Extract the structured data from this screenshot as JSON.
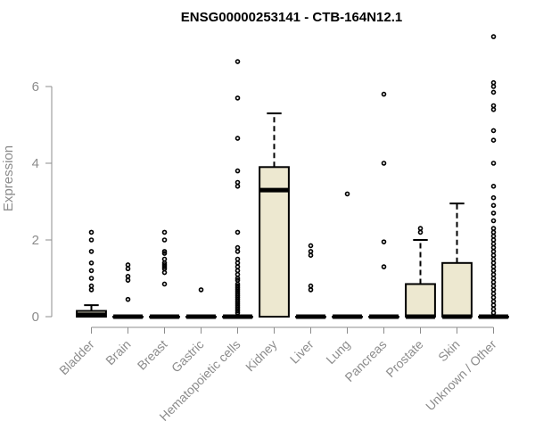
{
  "chart_data": {
    "type": "boxplot",
    "title": "ENSG00000253141 - CTB-164N12.1",
    "ylabel": "Expression",
    "xlabel": "",
    "ylim": [
      0,
      7.4
    ],
    "yticks": [
      0,
      2,
      4,
      6
    ],
    "grid": false,
    "colors": {
      "box_fill": "#ede8d0",
      "box_stroke": "#000000",
      "axis": "#8c8c8c"
    },
    "categories": [
      "Bladder",
      "Brain",
      "Breast",
      "Gastric",
      "Hematopoietic cells",
      "Kidney",
      "Liver",
      "Lung",
      "Pancreas",
      "Prostate",
      "Skin",
      "Unknown / Other"
    ],
    "boxes": [
      {
        "category": "Bladder",
        "min": 0,
        "q1": 0,
        "median": 0.05,
        "q3": 0.15,
        "max": 0.3,
        "outliers": [
          0.7,
          0.8,
          1.0,
          1.2,
          1.4,
          1.7,
          2.0,
          2.2
        ]
      },
      {
        "category": "Brain",
        "min": 0,
        "q1": 0,
        "median": 0,
        "q3": 0,
        "max": 0,
        "outliers": [
          0.45,
          0.95,
          1.05,
          1.25,
          1.35
        ]
      },
      {
        "category": "Breast",
        "min": 0,
        "q1": 0,
        "median": 0,
        "q3": 0,
        "max": 0,
        "outliers": [
          0.85,
          1.15,
          1.25,
          1.3,
          1.35,
          1.4,
          1.5,
          1.65,
          1.7,
          2.0,
          2.2
        ]
      },
      {
        "category": "Gastric",
        "min": 0,
        "q1": 0,
        "median": 0,
        "q3": 0,
        "max": 0,
        "outliers": [
          0.7
        ]
      },
      {
        "category": "Hematopoietic cells",
        "min": 0,
        "q1": 0,
        "median": 0,
        "q3": 0,
        "max": 0,
        "outliers": [
          0.1,
          0.15,
          0.2,
          0.25,
          0.3,
          0.35,
          0.4,
          0.45,
          0.5,
          0.55,
          0.6,
          0.65,
          0.7,
          0.75,
          0.8,
          0.85,
          0.95,
          1.0,
          1.1,
          1.2,
          1.3,
          1.4,
          1.5,
          1.7,
          1.8,
          2.2,
          3.4,
          3.5,
          3.8,
          4.65,
          5.7,
          6.65
        ]
      },
      {
        "category": "Kidney",
        "min": 0,
        "q1": 0,
        "median": 3.3,
        "q3": 3.9,
        "max": 5.3,
        "outliers": []
      },
      {
        "category": "Liver",
        "min": 0,
        "q1": 0,
        "median": 0,
        "q3": 0,
        "max": 0,
        "outliers": [
          0.7,
          0.8,
          1.6,
          1.7,
          1.85
        ]
      },
      {
        "category": "Lung",
        "min": 0,
        "q1": 0,
        "median": 0,
        "q3": 0,
        "max": 0,
        "outliers": [
          3.2
        ]
      },
      {
        "category": "Pancreas",
        "min": 0,
        "q1": 0,
        "median": 0,
        "q3": 0,
        "max": 0,
        "outliers": [
          1.3,
          1.95,
          4.0,
          5.8
        ]
      },
      {
        "category": "Prostate",
        "min": 0,
        "q1": 0,
        "median": 0,
        "q3": 0.85,
        "max": 2.0,
        "outliers": [
          2.2,
          2.3
        ]
      },
      {
        "category": "Skin",
        "min": 0,
        "q1": 0,
        "median": 0,
        "q3": 1.4,
        "max": 2.95,
        "outliers": []
      },
      {
        "category": "Unknown / Other",
        "min": 0,
        "q1": 0,
        "median": 0,
        "q3": 0,
        "max": 0,
        "outliers": [
          0.1,
          0.2,
          0.3,
          0.4,
          0.5,
          0.6,
          0.7,
          0.8,
          0.9,
          1.0,
          1.1,
          1.2,
          1.3,
          1.4,
          1.5,
          1.6,
          1.7,
          1.8,
          1.9,
          2.0,
          2.1,
          2.2,
          2.3,
          2.5,
          2.7,
          2.9,
          3.1,
          3.4,
          4.0,
          4.6,
          4.85,
          5.4,
          5.5,
          5.85,
          6.0,
          6.1,
          7.3
        ]
      }
    ]
  }
}
